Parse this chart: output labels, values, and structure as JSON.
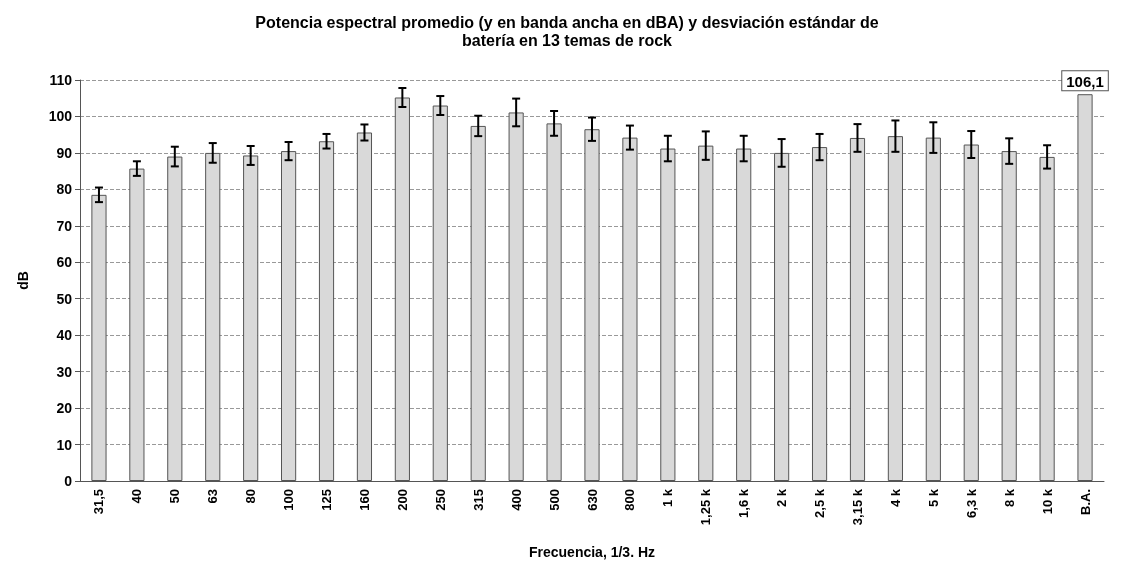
{
  "chart_data": {
    "type": "bar",
    "title": "Potencia espectral promedio (y en banda ancha en dBA) y desviación estándar de\nbatería en 13 temas de rock",
    "xlabel": "Frecuencia, 1/3. Hz",
    "ylabel": "dB",
    "categories": [
      "31,5",
      "40",
      "50",
      "63",
      "80",
      "100",
      "125",
      "160",
      "200",
      "250",
      "315",
      "400",
      "500",
      "630",
      "800",
      "1 k",
      "1,25 k",
      "1,6 k",
      "2 k",
      "2,5 k",
      "3,15 k",
      "4 k",
      "5 k",
      "6,3 k",
      "8 k",
      "10 k",
      "B.A."
    ],
    "values": [
      78.5,
      85.7,
      89,
      90,
      89.3,
      90.5,
      93.2,
      95.6,
      105.2,
      103,
      97.4,
      101.1,
      98.1,
      96.5,
      94.2,
      91.2,
      92,
      91.2,
      90,
      91.6,
      94.1,
      94.6,
      94.2,
      92.3,
      90.5,
      88.9,
      106.1
    ],
    "errors": [
      2,
      2,
      2.7,
      2.7,
      2.6,
      2.5,
      2,
      2.2,
      2.6,
      2.6,
      2.8,
      3.8,
      3.4,
      3.2,
      3.3,
      3.5,
      3.9,
      3.5,
      3.8,
      3.6,
      3.8,
      4.3,
      4.2,
      3.7,
      3.5,
      3.2,
      null
    ],
    "value_labels": [
      null,
      null,
      null,
      null,
      null,
      null,
      null,
      null,
      null,
      null,
      null,
      null,
      null,
      null,
      null,
      null,
      null,
      null,
      null,
      null,
      null,
      null,
      null,
      null,
      null,
      null,
      "106,1"
    ],
    "color": "#d9d9d9",
    "ylim": [
      0,
      110
    ],
    "yticks": [
      0,
      10,
      20,
      30,
      40,
      50,
      60,
      70,
      80,
      90,
      100,
      110
    ],
    "grid": "y"
  }
}
